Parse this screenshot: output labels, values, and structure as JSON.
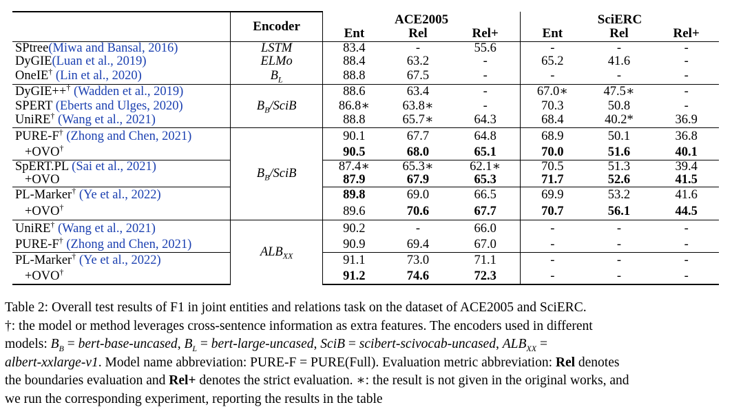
{
  "table": {
    "header": {
      "encoder": "Encoder",
      "ace": "ACE2005",
      "scierc": "SciERC",
      "ent": "Ent",
      "rel": "Rel",
      "relp": "Rel+"
    },
    "rows": [
      {
        "model": "SPtree",
        "cite": "(Miwa and Bansal, 2016)",
        "dag": "",
        "enc": "LSTM",
        "v": [
          "83.4",
          "-",
          "55.6",
          "-",
          "-",
          "-"
        ]
      },
      {
        "model": "DyGIE",
        "cite": "(Luan et al., 2019)",
        "dag": "",
        "enc": "ELMo",
        "v": [
          "88.4",
          "63.2",
          "-",
          "65.2",
          "41.6",
          "-"
        ]
      },
      {
        "model": "OneIE",
        "cite": " (Lin et al., 2020)",
        "dag": "†",
        "enc": "B_L",
        "v": [
          "88.8",
          "67.5",
          "-",
          "-",
          "-",
          "-"
        ]
      },
      {
        "model": "DyGIE++",
        "cite": " (Wadden et al., 2019)",
        "dag": "†",
        "enc": "",
        "v": [
          "88.6",
          "63.4",
          "-",
          "67.0∗",
          "47.5∗",
          "-"
        ]
      },
      {
        "model": "SPERT",
        "cite": " (Eberts and Ulges, 2020)",
        "dag": "",
        "enc": "B_B/SciB",
        "v": [
          "86.8∗",
          "63.8∗",
          "-",
          "70.3",
          "50.8",
          "-"
        ]
      },
      {
        "model": "UniRE",
        "cite": " (Wang et al., 2021)",
        "dag": "†",
        "enc": "",
        "v": [
          "88.8",
          "65.7∗",
          "64.3",
          "68.4",
          "40.2*",
          "36.9"
        ]
      },
      {
        "model": "PURE-F",
        "cite": " (Zhong and Chen, 2021)",
        "dag": "†",
        "enc": "",
        "v": [
          "90.1",
          "67.7",
          "64.8",
          "68.9",
          "50.1",
          "36.8"
        ]
      },
      {
        "model": "+OVO",
        "cite": "",
        "dag": "†",
        "enc": "",
        "v": [
          "90.5",
          "68.0",
          "65.1",
          "70.0",
          "51.6",
          "40.1"
        ]
      },
      {
        "model": "SpERT.PL",
        "cite": " (Sai et al., 2021)",
        "dag": "",
        "enc": "B_B/SciB",
        "v": [
          "87.4∗",
          "65.3∗",
          "62.1∗",
          "70.5",
          "51.3",
          "39.4"
        ]
      },
      {
        "model": "+OVO",
        "cite": "",
        "dag": "",
        "enc": "",
        "v": [
          "87.9",
          "67.9",
          "65.3",
          "71.7",
          "52.6",
          "41.5"
        ]
      },
      {
        "model": "PL-Marker",
        "cite": " (Ye et al., 2022)",
        "dag": "†",
        "enc": "",
        "v": [
          "89.8",
          "69.0",
          "66.5",
          "69.9",
          "53.2",
          "41.6"
        ]
      },
      {
        "model": "+OVO",
        "cite": "",
        "dag": "†",
        "enc": "",
        "v": [
          "89.6",
          "70.6",
          "67.7",
          "70.7",
          "56.1",
          "44.5"
        ]
      },
      {
        "model": "UniRE",
        "cite": " (Wang et al., 2021)",
        "dag": "†",
        "enc": "",
        "v": [
          "90.2",
          "-",
          "66.0",
          "-",
          "-",
          "-"
        ]
      },
      {
        "model": "PURE-F",
        "cite": " (Zhong and Chen, 2021)",
        "dag": "†",
        "enc": "ALB_XX",
        "v": [
          "90.9",
          "69.4",
          "67.0",
          "-",
          "-",
          "-"
        ]
      },
      {
        "model": "PL-Marker",
        "cite": " (Ye et al., 2022)",
        "dag": "†",
        "enc": "",
        "v": [
          "91.1",
          "73.0",
          "71.1",
          "-",
          "-",
          "-"
        ]
      },
      {
        "model": "+OVO",
        "cite": "",
        "dag": "†",
        "enc": "",
        "v": [
          "91.2",
          "74.6",
          "72.3",
          "-",
          "-",
          "-"
        ]
      }
    ]
  },
  "caption": {
    "l1": "Table 2: Overall test results of F1 in joint entities and relations task on the dataset of ACE2005 and SciERC.",
    "l2": "†: the model or method leverages cross-sentence information as extra features. The encoders used in different",
    "l3a": "models: ",
    "l3b": " = ",
    "l3c": "bert-base-uncased",
    "l3d": ", ",
    "l3e": " = ",
    "l3f": "bert-large-uncased",
    "l3g": ", ",
    "l3h": " = ",
    "l3i": "scibert-scivocab-uncased",
    "l3j": ", ",
    "l3k": " =",
    "l4a": "albert-xxlarge-v1",
    "l4b": ". Model name abbreviation: PURE-F = PURE(Full). Evaluation metric abbreviation: ",
    "l4c": "Rel",
    "l4d": " denotes",
    "l5a": "the boundaries evaluation and ",
    "l5b": "Rel+",
    "l5c": " denotes the strict evaluation. ∗: the result is not given in the original works, and",
    "l6": "we run the corresponding experiment, reporting the results in the table"
  }
}
